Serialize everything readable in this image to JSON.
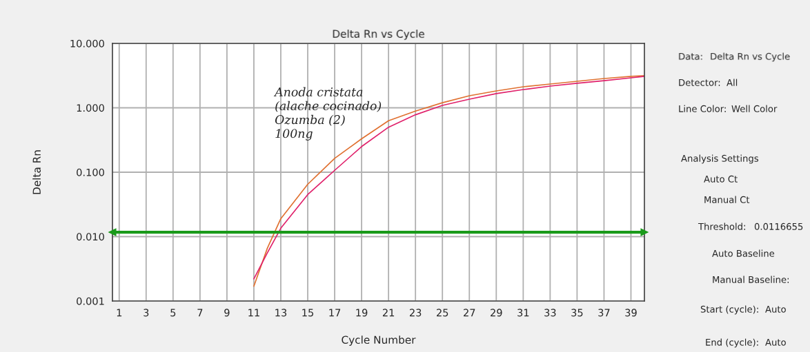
{
  "chart_data": {
    "type": "line",
    "title": "Delta Rn vs Cycle",
    "xlabel": "Cycle Number",
    "ylabel": "Delta Rn",
    "x": [
      11,
      12,
      13,
      15,
      17,
      19,
      21,
      23,
      25,
      27,
      29,
      31,
      33,
      35,
      37,
      39,
      40
    ],
    "series": [
      {
        "color": "#e07030",
        "values": [
          0.0017,
          0.0066,
          0.019,
          0.065,
          0.164,
          0.33,
          0.63,
          0.89,
          1.2,
          1.54,
          1.83,
          2.12,
          2.34,
          2.58,
          2.85,
          3.07,
          3.16
        ]
      },
      {
        "color": "#e0206a",
        "values": [
          0.0022,
          0.0056,
          0.0135,
          0.045,
          0.107,
          0.25,
          0.5,
          0.78,
          1.09,
          1.36,
          1.66,
          1.92,
          2.17,
          2.4,
          2.64,
          2.92,
          3.07
        ]
      }
    ],
    "log": "y",
    "xlim": [
      0.5,
      40
    ],
    "ylim": [
      0.001,
      10
    ],
    "xticks": [
      1,
      3,
      5,
      7,
      9,
      11,
      13,
      15,
      17,
      19,
      21,
      23,
      25,
      27,
      29,
      31,
      33,
      35,
      37,
      39
    ],
    "yticks": [
      {
        "value": 0.001,
        "label": "0.001"
      },
      {
        "value": 0.01,
        "label": "0.010"
      },
      {
        "value": 0.1,
        "label": "0.100"
      },
      {
        "value": 1,
        "label": "1.000"
      },
      {
        "value": 10,
        "label": "10.000"
      }
    ],
    "grid": true,
    "marker": "none",
    "line_style": "solid",
    "ref_lines": [
      {
        "axis": "y",
        "value": 0.0117,
        "color": "#1a9a1a"
      }
    ],
    "annotations": [
      "Anoda cristata\n(alache cocinado)\nOzumba (2)\n100ng",
      "Data:",
      "Delta Rn vs Cycle",
      "Detector:",
      "All",
      "Line Color:",
      "Well Color",
      "Analysis Settings",
      "Auto Ct",
      "Manual Ct",
      "Threshold:",
      "0.0116655",
      "Auto Baseline",
      "Manual Baseline:",
      "Start (cycle):",
      "Auto",
      "End (cycle):",
      "Auto"
    ]
  }
}
